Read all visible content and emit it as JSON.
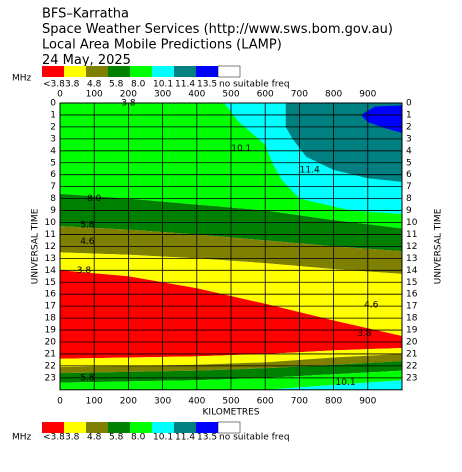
{
  "chart_data": {
    "type": "contour",
    "title_lines": [
      "BFS–Karratha",
      "Space Weather Services (http://www.sws.bom.gov.au)",
      "Local Area Mobile Predictions (LAMP)",
      "24 May, 2025"
    ],
    "xlabel": "KILOMETRES",
    "ylabel": "UNIVERSAL TIME",
    "xlim": [
      0,
      1000
    ],
    "ylim": [
      0,
      24
    ],
    "xticks": [
      0,
      100,
      200,
      300,
      400,
      500,
      600,
      700,
      800,
      900
    ],
    "yticks": [
      0,
      1,
      2,
      3,
      4,
      5,
      6,
      7,
      8,
      9,
      10,
      11,
      12,
      13,
      14,
      15,
      16,
      17,
      18,
      19,
      20,
      21,
      22,
      23
    ],
    "grid": true,
    "legend": {
      "unit": "MHz",
      "items": [
        {
          "label": "<3.8",
          "color": "#ff0000"
        },
        {
          "label": "3.8",
          "color": "#ffff00"
        },
        {
          "label": "4.8",
          "color": "#808000"
        },
        {
          "label": "5.8",
          "color": "#008000"
        },
        {
          "label": "8.0",
          "color": "#00ff00"
        },
        {
          "label": "10.1",
          "color": "#00ffff"
        },
        {
          "label": "11.4",
          "color": "#008080"
        },
        {
          "label": "13.5",
          "color": "#0000ff"
        },
        {
          "label": "no suitable freq",
          "color": "#ffffff"
        }
      ]
    },
    "contours": {
      "km": [
        0,
        200,
        400,
        600,
        800,
        1000
      ],
      "boundaries": [
        [
          0,
          0,
          0,
          0,
          0,
          0
        ],
        [
          7.6,
          8.0,
          8.5,
          9.0,
          9.8,
          10.5
        ],
        [
          10.3,
          10.6,
          11.0,
          11.5,
          12.0,
          12.4
        ],
        [
          12.5,
          12.7,
          13.0,
          13.4,
          13.9,
          14.3
        ],
        [
          14.0,
          14.5,
          15.5,
          16.8,
          18.2,
          19.5
        ],
        [
          21.4,
          21.3,
          21.2,
          21.0,
          20.7,
          20.5
        ],
        [
          22.1,
          22.0,
          21.9,
          21.7,
          21.3,
          21.0
        ],
        [
          22.6,
          22.5,
          22.4,
          22.2,
          21.9,
          21.6
        ],
        [
          23.4,
          23.3,
          23.2,
          23.0,
          22.7,
          22.4
        ],
        [
          24,
          24,
          24,
          24,
          23.6,
          23.2
        ],
        [
          24,
          24,
          24,
          24,
          24,
          24
        ]
      ],
      "band_colors": [
        "#00ff00",
        "#008000",
        "#808000",
        "#ffff00",
        "#ff0000",
        "#ffff00",
        "#808000",
        "#008000",
        "#00ff00",
        "#00ffff"
      ]
    },
    "overlays": [
      {
        "color": "#00ffff",
        "km": [
          480,
          520,
          600,
          620,
          650,
          700,
          850,
          1000,
          1000
        ],
        "ut": [
          0,
          1.5,
          3.5,
          5,
          6.5,
          8,
          9,
          9.3,
          0
        ]
      },
      {
        "color": "#008080",
        "km": [
          660,
          660,
          680,
          720,
          800,
          900,
          1000,
          1000
        ],
        "ut": [
          0,
          2,
          3,
          4.5,
          5.6,
          6.3,
          6.6,
          0
        ]
      },
      {
        "color": "#0000ff",
        "km": [
          920,
          880,
          900,
          950,
          1000,
          1000
        ],
        "ut": [
          0.3,
          1,
          1.6,
          2.1,
          2.5,
          0.2
        ]
      }
    ],
    "annotations": [
      {
        "text": "3.8",
        "km": 200,
        "ut": 0
      },
      {
        "text": "10.1",
        "km": 530,
        "ut": 3.8
      },
      {
        "text": "11.4",
        "km": 730,
        "ut": 5.6
      },
      {
        "text": "8.0",
        "km": 100,
        "ut": 8.0
      },
      {
        "text": "5.8",
        "km": 80,
        "ut": 10.2
      },
      {
        "text": "4.6",
        "km": 80,
        "ut": 11.6
      },
      {
        "text": "3.8",
        "km": 70,
        "ut": 14.0
      },
      {
        "text": "4.6",
        "km": 910,
        "ut": 16.9
      },
      {
        "text": "3.8",
        "km": 890,
        "ut": 19.3
      },
      {
        "text": "5.8",
        "km": 80,
        "ut": 23.0
      },
      {
        "text": "10.1",
        "km": 835,
        "ut": 23.4
      }
    ]
  }
}
